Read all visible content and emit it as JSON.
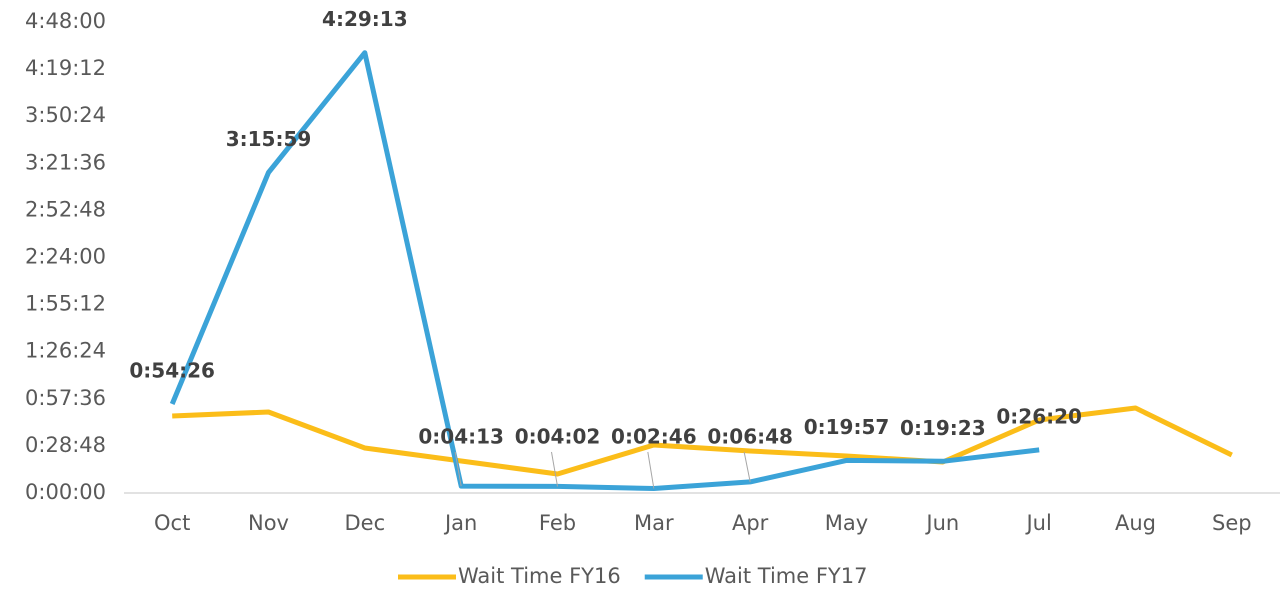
{
  "chart_data": {
    "type": "line",
    "categories": [
      "Oct",
      "Nov",
      "Dec",
      "Jan",
      "Feb",
      "Mar",
      "Apr",
      "May",
      "Jun",
      "Jul",
      "Aug",
      "Sep"
    ],
    "series": [
      {
        "name": "Wait Time FY16",
        "color": "#fbbd19",
        "values": [
          2826,
          2973,
          1651,
          1174,
          697,
          1761,
          1541,
          1358,
          1138,
          2679,
          3119,
          1394
        ]
      },
      {
        "name": "Wait Time FY17",
        "color": "#3ba3d8",
        "values": [
          3266,
          11759,
          16153,
          253,
          242,
          166,
          408,
          1197,
          1163,
          1580,
          null,
          null
        ],
        "value_labels": [
          "0:54:26",
          "3:15:59",
          "4:29:13",
          "0:04:13",
          "0:04:02",
          "0:02:46",
          "0:06:48",
          "0:19:57",
          "0:19:23",
          "0:26:20",
          null,
          null
        ]
      }
    ],
    "ylim": [
      0,
      17280
    ],
    "yticks": [
      {
        "value": 0,
        "label": "0:00:00"
      },
      {
        "value": 1728,
        "label": "0:28:48"
      },
      {
        "value": 3456,
        "label": "0:57:36"
      },
      {
        "value": 5184,
        "label": "1:26:24"
      },
      {
        "value": 6912,
        "label": "1:55:12"
      },
      {
        "value": 8640,
        "label": "2:24:00"
      },
      {
        "value": 10368,
        "label": "2:52:48"
      },
      {
        "value": 12096,
        "label": "3:21:36"
      },
      {
        "value": 13824,
        "label": "3:50:24"
      },
      {
        "value": 15552,
        "label": "4:19:12"
      },
      {
        "value": 17280,
        "label": "4:48:00"
      }
    ],
    "legend": "bottom"
  }
}
